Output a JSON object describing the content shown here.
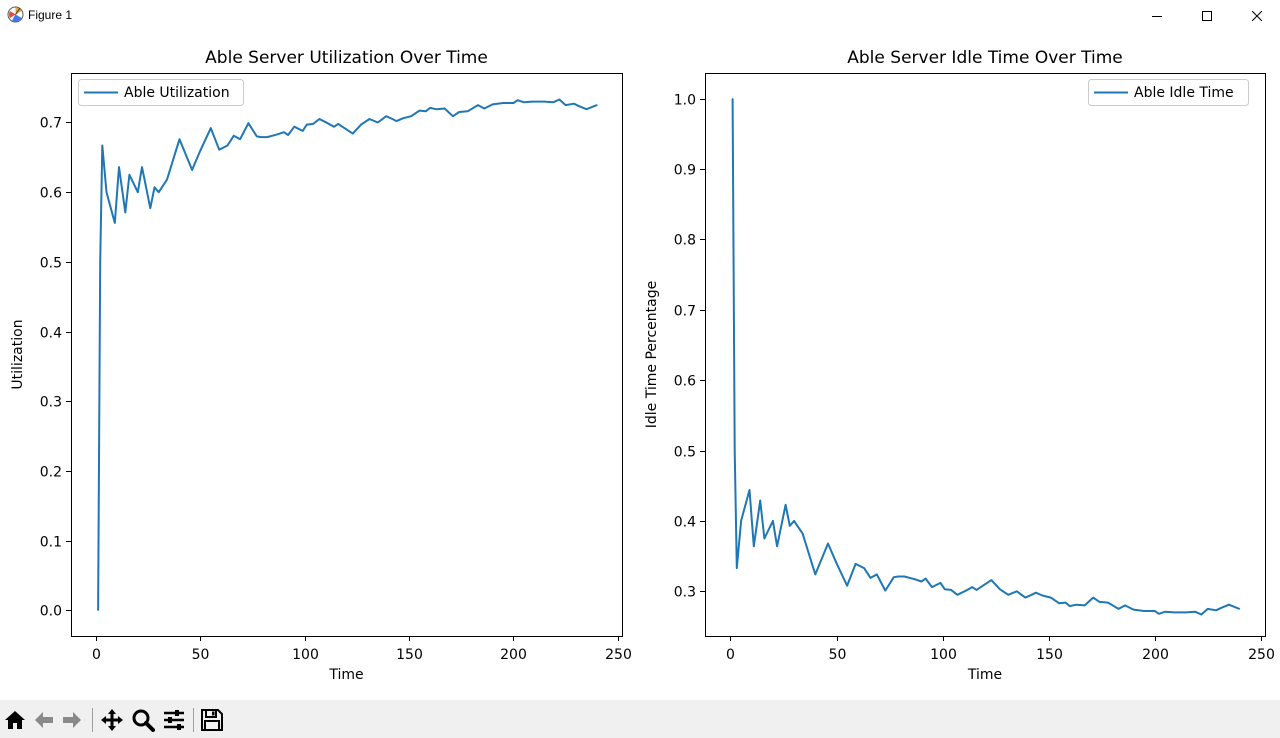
{
  "window": {
    "title": "Figure 1",
    "icon": "matplotlib-icon",
    "controls": [
      "minimize-icon",
      "maximize-icon",
      "close-icon"
    ]
  },
  "toolbar": {
    "tools": [
      "home-icon",
      "back-arrow-icon",
      "forward-arrow-icon",
      "pan-icon",
      "zoom-icon",
      "configure-subplots-icon",
      "save-icon"
    ]
  },
  "chart_data": [
    {
      "type": "line",
      "title": "Able Server Utilization Over Time",
      "xlabel": "Time",
      "ylabel": "Utilization",
      "xlim": [
        -12,
        252
      ],
      "ylim": [
        -0.0367,
        0.771
      ],
      "xticks": [
        0,
        50,
        100,
        150,
        200,
        250
      ],
      "yticks": [
        0.0,
        0.1,
        0.2,
        0.3,
        0.4,
        0.5,
        0.6,
        0.7
      ],
      "ytick_decimals": 1,
      "grid": false,
      "legend": "upper left",
      "color": "#1f77b4",
      "series": [
        {
          "name": "Able Utilization",
          "x": [
            1,
            2,
            3,
            5,
            9,
            11,
            14,
            16,
            20,
            22,
            26,
            28,
            30,
            34,
            40,
            46,
            50,
            55,
            59,
            63,
            66,
            69,
            73,
            77,
            79,
            82,
            87,
            90,
            92,
            95,
            99,
            101,
            104,
            107,
            111,
            114,
            116,
            119,
            123,
            127,
            131,
            135,
            139,
            142,
            144,
            147,
            151,
            155,
            158,
            160,
            163,
            167,
            171,
            174,
            178,
            183,
            186,
            190,
            195,
            200,
            202,
            205,
            209,
            212,
            215,
            219,
            222,
            225,
            229,
            231,
            235,
            240
          ],
          "y": [
            0.0,
            0.5,
            0.667,
            0.6,
            0.556,
            0.636,
            0.571,
            0.625,
            0.6,
            0.636,
            0.577,
            0.607,
            0.6,
            0.618,
            0.676,
            0.632,
            0.66,
            0.692,
            0.661,
            0.667,
            0.681,
            0.676,
            0.699,
            0.68,
            0.679,
            0.679,
            0.683,
            0.686,
            0.682,
            0.694,
            0.688,
            0.697,
            0.698,
            0.705,
            0.699,
            0.694,
            0.698,
            0.692,
            0.684,
            0.697,
            0.705,
            0.7,
            0.709,
            0.705,
            0.702,
            0.706,
            0.709,
            0.717,
            0.716,
            0.721,
            0.719,
            0.72,
            0.709,
            0.715,
            0.716,
            0.725,
            0.72,
            0.726,
            0.728,
            0.728,
            0.732,
            0.729,
            0.73,
            0.73,
            0.73,
            0.729,
            0.733,
            0.725,
            0.727,
            0.724,
            0.719,
            0.725
          ]
        }
      ]
    },
    {
      "type": "line",
      "title": "Able Server Idle Time Over Time",
      "xlabel": "Time",
      "ylabel": "Idle Time Percentage",
      "xlim": [
        -12,
        252
      ],
      "ylim": [
        0.2365,
        1.0365
      ],
      "xticks": [
        0,
        50,
        100,
        150,
        200,
        250
      ],
      "yticks": [
        0.3,
        0.4,
        0.5,
        0.6,
        0.7,
        0.8,
        0.9,
        1.0
      ],
      "ytick_decimals": 1,
      "grid": false,
      "legend": "upper right",
      "color": "#1f77b4",
      "series": [
        {
          "name": "Able Idle Time",
          "x": [
            1,
            2,
            3,
            5,
            9,
            11,
            14,
            16,
            20,
            22,
            26,
            28,
            30,
            34,
            40,
            46,
            50,
            55,
            59,
            63,
            66,
            69,
            73,
            77,
            79,
            82,
            87,
            90,
            92,
            95,
            99,
            101,
            104,
            107,
            111,
            114,
            116,
            119,
            123,
            127,
            131,
            135,
            139,
            142,
            144,
            147,
            151,
            155,
            158,
            160,
            163,
            167,
            171,
            174,
            178,
            183,
            186,
            190,
            195,
            200,
            202,
            205,
            209,
            212,
            215,
            219,
            222,
            225,
            229,
            231,
            235,
            240
          ],
          "y": [
            1.0,
            0.5,
            0.333,
            0.4,
            0.444,
            0.364,
            0.429,
            0.375,
            0.4,
            0.364,
            0.423,
            0.393,
            0.4,
            0.382,
            0.324,
            0.368,
            0.34,
            0.308,
            0.339,
            0.333,
            0.319,
            0.324,
            0.301,
            0.32,
            0.321,
            0.321,
            0.317,
            0.314,
            0.318,
            0.306,
            0.312,
            0.303,
            0.302,
            0.295,
            0.301,
            0.306,
            0.302,
            0.308,
            0.316,
            0.303,
            0.295,
            0.3,
            0.291,
            0.295,
            0.298,
            0.294,
            0.291,
            0.283,
            0.284,
            0.279,
            0.281,
            0.28,
            0.291,
            0.285,
            0.284,
            0.275,
            0.28,
            0.274,
            0.272,
            0.272,
            0.268,
            0.271,
            0.27,
            0.27,
            0.27,
            0.271,
            0.267,
            0.275,
            0.273,
            0.276,
            0.281,
            0.275
          ]
        }
      ]
    }
  ]
}
